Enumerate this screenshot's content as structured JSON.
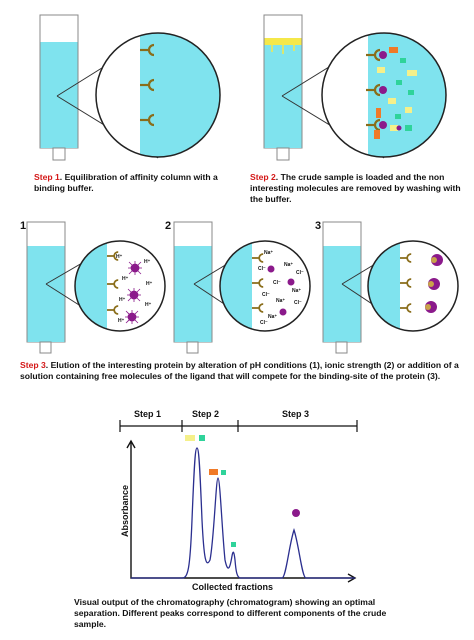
{
  "step1": {
    "step_label": "Step 1",
    "text": ". Equilibration of affinity column with a binding buffer."
  },
  "step2": {
    "step_label": "Step 2",
    "text": ". The crude sample is loaded and the non interesting molecules are removed by washing with the buffer."
  },
  "step3": {
    "step_label": "Step 3",
    "text": ". Elution of the interesting protein by alteration of pH conditions (1), ionic strength (2) or addition of a solution containing free molecules of the ligand that will compete for the binding-site of the protein (3).",
    "panels": [
      "1",
      "2",
      "3"
    ]
  },
  "panel1_ions": [
    "H⁺",
    "H⁺",
    "H⁺",
    "H⁺",
    "H⁺",
    "H⁺",
    "H⁺"
  ],
  "panel2_ions": [
    "Na⁺",
    "Cl⁻",
    "Na⁺",
    "Cl⁻",
    "Cl⁻",
    "Na⁺",
    "Cl⁻",
    "Na⁺",
    "Cl⁻",
    "Na⁺",
    "Cl⁻"
  ],
  "chromatogram": {
    "steps": [
      "Step 1",
      "Step 2",
      "Step 3"
    ],
    "ylabel": "Absorbance",
    "xlabel": "Collected fractions",
    "caption": "Visual output of the chromatography (chromatogram) showing an optimal separation. Different peaks correspond to different components of the crude sample."
  },
  "colors": {
    "buffer": "#7fe3ee",
    "ligand": "#8a6d1a",
    "protein": "#8b1a8b",
    "yellow": "#f5f08a",
    "orange": "#f07a28",
    "green": "#2fd39a",
    "trace": "#2b2f8f",
    "step_red": "#d41818"
  }
}
